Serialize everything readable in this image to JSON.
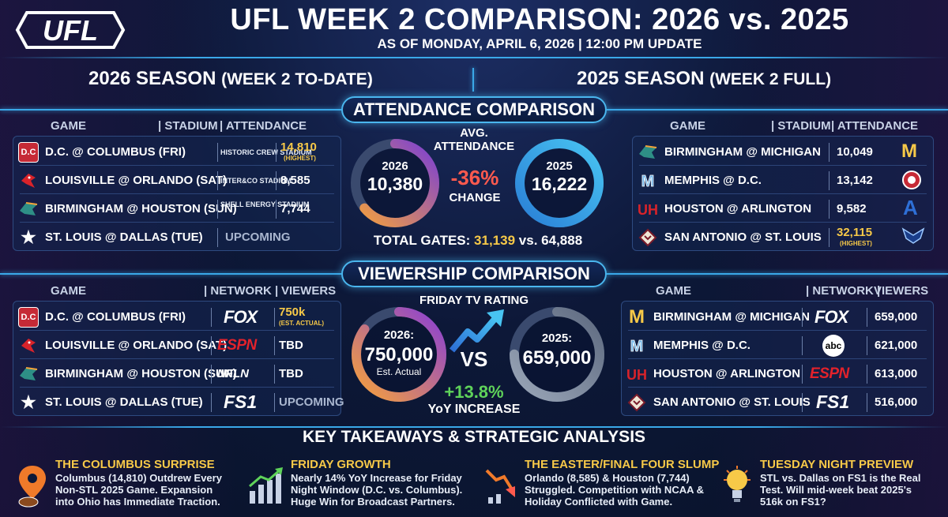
{
  "header": {
    "logo_text": "UFL",
    "title": "UFL WEEK 2 COMPARISON: 2026 vs. 2025",
    "subtitle": "AS OF MONDAY, APRIL 6, 2026 | 12:00 PM UPDATE"
  },
  "seasons": {
    "left_main": "2026 SEASON",
    "left_sub": "(WEEK 2 TO-DATE)",
    "right_main": "2025 SEASON",
    "right_sub": "(WEEK 2 FULL)"
  },
  "attendance": {
    "section_title": "ATTENDANCE COMPARISON",
    "headers": {
      "game": "GAME",
      "stadium": "STADIUM",
      "attendance": "ATTENDANCE"
    },
    "left_rows": [
      {
        "icon": "dc-defenders-icon",
        "icon_text": "D.C",
        "game": "D.C. @ COLUMBUS (FRI)",
        "stadium": "HISTORIC CREW STADIUM",
        "value": "14,810",
        "note": "(HIGHEST)"
      },
      {
        "icon": "louisville-cardinal-icon",
        "icon_text": "",
        "game": "LOUISVILLE @ ORLANDO (SAT)",
        "stadium": "INTER&CO STADIUM",
        "value": "8,585",
        "note": ""
      },
      {
        "icon": "birmingham-stallions-icon",
        "icon_text": "",
        "game": "BIRMINGHAM @ HOUSTON (SUN)",
        "stadium": "SHELL ENERGY STADIUM",
        "value": "7,744",
        "note": ""
      },
      {
        "icon": "dallas-star-icon",
        "icon_text": "★",
        "game": "ST. LOUIS @ DALLAS (TUE)",
        "stadium": "",
        "value": "UPCOMING",
        "note": ""
      }
    ],
    "right_rows": [
      {
        "icon": "birmingham-stallions-icon",
        "game": "BIRMINGHAM @ MICHIGAN",
        "value": "10,049",
        "note": "",
        "right_icon": "michigan-m-icon",
        "right_text": "M"
      },
      {
        "icon": "memphis-showboats-icon",
        "game": "MEMPHIS @ D.C.",
        "value": "13,142",
        "note": "",
        "right_icon": "dc-defenders-icon",
        "right_text": ""
      },
      {
        "icon": "houston-uh-icon",
        "game": "HOUSTON @ ARLINGTON",
        "value": "9,582",
        "note": "",
        "right_icon": "arlington-a-icon",
        "right_text": "A"
      },
      {
        "icon": "san-antonio-brahmas-icon",
        "game": "SAN ANTONIO @ ST. LOUIS",
        "value": "32,115",
        "note": "(HIGHEST)",
        "right_icon": "st-louis-battlehawks-icon",
        "right_text": ""
      }
    ],
    "avg_label": "AVG. ATTENDANCE",
    "ring_2026_year": "2026",
    "ring_2026_value": "10,380",
    "ring_2025_year": "2025",
    "ring_2025_value": "16,222",
    "change_pct": "-36%",
    "change_label": "CHANGE",
    "total_label": "TOTAL GATES:",
    "total_2026": "31,139",
    "total_vs": "vs.",
    "total_2025": "64,888",
    "ring_2026_fraction": 0.64,
    "ring_2025_fraction": 1.0
  },
  "viewership": {
    "section_title": "VIEWERSHIP COMPARISON",
    "headers": {
      "game": "GAME",
      "network": "NETWORK",
      "viewers": "VIEWERS"
    },
    "left_rows": [
      {
        "icon": "dc-defenders-icon",
        "icon_text": "D.C",
        "game": "D.C. @ COLUMBUS (FRI)",
        "network": "FOX",
        "value": "750k",
        "note": "(EST. ACTUAL)"
      },
      {
        "icon": "louisville-cardinal-icon",
        "icon_text": "",
        "game": "LOUISVILLE @ ORLANDO (SAT)",
        "network": "ESPN",
        "value": "TBD",
        "note": ""
      },
      {
        "icon": "birmingham-stallions-icon",
        "icon_text": "",
        "game": "BIRMINGHAM @ HOUSTON (SUN)",
        "network": "NFLN",
        "value": "TBD",
        "note": ""
      },
      {
        "icon": "dallas-star-icon",
        "icon_text": "★",
        "game": "ST. LOUIS @ DALLAS (TUE)",
        "network": "FS1",
        "value": "UPCOMING",
        "note": ""
      }
    ],
    "right_rows": [
      {
        "icon": "michigan-m-icon",
        "icon_text": "M",
        "game": "BIRMINGHAM @ MICHIGAN",
        "network": "FOX",
        "value": "659,000"
      },
      {
        "icon": "memphis-showboats-icon",
        "icon_text": "",
        "game": "MEMPHIS @ D.C.",
        "network": "abc",
        "value": "621,000"
      },
      {
        "icon": "houston-uh-icon",
        "icon_text": "",
        "game": "HOUSTON @ ARLINGTON",
        "network": "ESPN",
        "value": "613,000"
      },
      {
        "icon": "san-antonio-brahmas-icon",
        "icon_text": "",
        "game": "SAN ANTONIO @ ST. LOUIS",
        "network": "FS1",
        "value": "516,000"
      }
    ],
    "rating_label": "FRIDAY TV RATING",
    "ring_2026_year": "2026:",
    "ring_2026_value": "750,000",
    "ring_2026_note": "Est. Actual",
    "ring_2025_year": "2025:",
    "ring_2025_value": "659,000",
    "vs_label": "VS",
    "increase_pct": "+13.8%",
    "increase_label": "YoY INCREASE",
    "ring_2026_fraction": 0.85,
    "ring_2025_fraction": 0.75
  },
  "takeaways": {
    "section_title": "KEY TAKEAWAYS & STRATEGIC ANALYSIS",
    "items": [
      {
        "icon": "map-pin-football-icon",
        "title": "THE COLUMBUS SURPRISE",
        "body": "Columbus (14,810) Outdrew Every Non-STL 2025 Game. Expansion into Ohio has Immediate Traction."
      },
      {
        "icon": "growth-chart-icon",
        "title": "FRIDAY GROWTH",
        "body": "Nearly 14% YoY Increase for Friday Night Window (D.C. vs. Columbus). Huge Win for Broadcast Partners."
      },
      {
        "icon": "down-arrow-chart-icon",
        "title": "THE EASTER/FINAL FOUR SLUMP",
        "body": "Orlando (8,585) & Houston (7,744) Struggled. Competition with NCAA & Holiday Conflicted with Game."
      },
      {
        "icon": "lightbulb-icon",
        "title": "TUESDAY NIGHT PREVIEW",
        "body": "STL vs. Dallas on FS1 is the Real Test. Will mid-week beat 2025's 516k on FS1?"
      }
    ]
  },
  "colors": {
    "gold": "#f7c948",
    "accent_blue": "#3aa8e8",
    "change_red": "#ff5a4e",
    "increase_green": "#5fd35a"
  }
}
